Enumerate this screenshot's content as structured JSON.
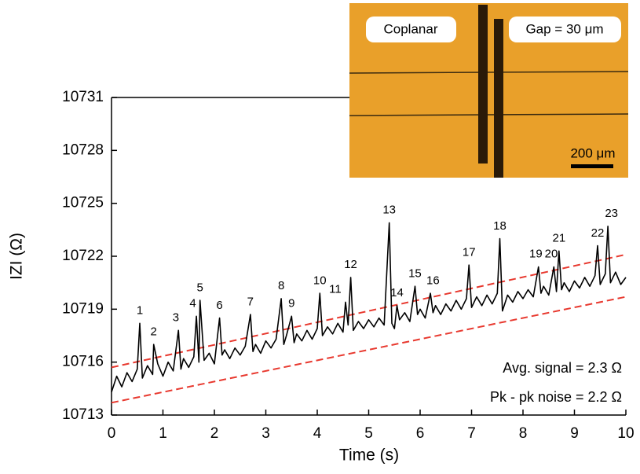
{
  "chart_data": {
    "type": "line",
    "xlabel": "Time (s)",
    "ylabel": "IZI (Ω)",
    "xlim": [
      0,
      10
    ],
    "ylim": [
      10713,
      10731
    ],
    "xticks": [
      0,
      1,
      2,
      3,
      4,
      5,
      6,
      7,
      8,
      9,
      10
    ],
    "yticks": [
      10713,
      10716,
      10719,
      10722,
      10725,
      10728,
      10731
    ],
    "series": [
      {
        "color": "#000000",
        "x": [
          0.0,
          0.1,
          0.2,
          0.3,
          0.4,
          0.5,
          0.55,
          0.6,
          0.7,
          0.8,
          0.82,
          0.9,
          1.0,
          1.1,
          1.2,
          1.3,
          1.35,
          1.4,
          1.5,
          1.6,
          1.65,
          1.7,
          1.72,
          1.8,
          1.9,
          2.0,
          2.1,
          2.15,
          2.2,
          2.3,
          2.4,
          2.5,
          2.6,
          2.7,
          2.75,
          2.8,
          2.9,
          3.0,
          3.1,
          3.2,
          3.3,
          3.35,
          3.4,
          3.5,
          3.55,
          3.6,
          3.7,
          3.8,
          3.9,
          4.0,
          4.05,
          4.1,
          4.2,
          4.3,
          4.4,
          4.5,
          4.55,
          4.6,
          4.65,
          4.7,
          4.8,
          4.9,
          5.0,
          5.1,
          5.2,
          5.3,
          5.4,
          5.45,
          5.5,
          5.55,
          5.6,
          5.7,
          5.8,
          5.9,
          5.95,
          6.0,
          6.1,
          6.2,
          6.25,
          6.3,
          6.4,
          6.5,
          6.6,
          6.7,
          6.8,
          6.9,
          6.95,
          7.0,
          7.1,
          7.2,
          7.3,
          7.4,
          7.5,
          7.55,
          7.6,
          7.7,
          7.8,
          7.9,
          8.0,
          8.1,
          8.2,
          8.3,
          8.35,
          8.4,
          8.5,
          8.6,
          8.65,
          8.7,
          8.75,
          8.8,
          8.9,
          9.0,
          9.1,
          9.2,
          9.3,
          9.4,
          9.45,
          9.5,
          9.6,
          9.65,
          9.7,
          9.8,
          9.9,
          10.0
        ],
        "values": [
          10714.3,
          10715.2,
          10714.6,
          10715.4,
          10714.9,
          10715.6,
          10718.2,
          10715.1,
          10715.8,
          10715.3,
          10717.0,
          10715.9,
          10715.2,
          10716.0,
          10715.5,
          10717.8,
          10715.6,
          10716.2,
          10715.7,
          10716.3,
          10718.6,
          10716.0,
          10719.5,
          10716.1,
          10716.5,
          10715.9,
          10718.5,
          10716.4,
          10716.7,
          10716.2,
          10716.8,
          10716.4,
          10716.9,
          10718.7,
          10716.6,
          10717.0,
          10716.5,
          10717.2,
          10716.8,
          10717.3,
          10719.6,
          10717.0,
          10717.5,
          10718.6,
          10717.1,
          10717.6,
          10717.2,
          10717.8,
          10717.3,
          10717.9,
          10719.9,
          10717.5,
          10718.0,
          10717.6,
          10718.2,
          10717.7,
          10719.4,
          10718.1,
          10720.8,
          10717.8,
          10718.3,
          10717.9,
          10718.4,
          10718.0,
          10718.5,
          10718.1,
          10723.9,
          10718.2,
          10717.9,
          10719.2,
          10718.4,
          10718.8,
          10718.3,
          10720.3,
          10718.7,
          10719.0,
          10718.5,
          10719.9,
          10718.8,
          10719.2,
          10718.7,
          10719.3,
          10718.9,
          10719.5,
          10719.0,
          10719.6,
          10721.5,
          10719.1,
          10719.7,
          10719.2,
          10719.8,
          10719.3,
          10719.9,
          10723.0,
          10718.9,
          10719.8,
          10719.4,
          10720.0,
          10719.6,
          10720.1,
          10719.7,
          10721.4,
          10719.9,
          10720.3,
          10719.8,
          10721.4,
          10720.0,
          10722.3,
          10720.1,
          10720.5,
          10720.0,
          10720.6,
          10720.2,
          10720.8,
          10720.3,
          10720.9,
          10722.6,
          10720.4,
          10721.0,
          10723.7,
          10720.5,
          10721.1,
          10720.4,
          10720.8
        ]
      }
    ],
    "fit_lines": [
      {
        "color": "#e8392f",
        "x": [
          0,
          10
        ],
        "values": [
          10715.7,
          10722.1
        ]
      },
      {
        "color": "#e8392f",
        "x": [
          0,
          10
        ],
        "values": [
          10713.7,
          10719.7
        ]
      }
    ],
    "peak_labels": [
      {
        "text": "1",
        "x": 0.55,
        "y": 10718.9
      },
      {
        "text": "2",
        "x": 0.82,
        "y": 10717.7
      },
      {
        "text": "3",
        "x": 1.25,
        "y": 10718.5
      },
      {
        "text": "4",
        "x": 1.58,
        "y": 10719.3
      },
      {
        "text": "5",
        "x": 1.72,
        "y": 10720.2
      },
      {
        "text": "6",
        "x": 2.1,
        "y": 10719.2
      },
      {
        "text": "7",
        "x": 2.7,
        "y": 10719.4
      },
      {
        "text": "8",
        "x": 3.3,
        "y": 10720.3
      },
      {
        "text": "9",
        "x": 3.5,
        "y": 10719.3
      },
      {
        "text": "10",
        "x": 4.05,
        "y": 10720.6
      },
      {
        "text": "11",
        "x": 4.35,
        "y": 10720.1
      },
      {
        "text": "12",
        "x": 4.65,
        "y": 10721.5
      },
      {
        "text": "13",
        "x": 5.4,
        "y": 10724.6
      },
      {
        "text": "14",
        "x": 5.55,
        "y": 10719.9
      },
      {
        "text": "15",
        "x": 5.9,
        "y": 10721.0
      },
      {
        "text": "16",
        "x": 6.25,
        "y": 10720.6
      },
      {
        "text": "17",
        "x": 6.95,
        "y": 10722.2
      },
      {
        "text": "18",
        "x": 7.55,
        "y": 10723.7
      },
      {
        "text": "19",
        "x": 8.25,
        "y": 10722.1
      },
      {
        "text": "20",
        "x": 8.55,
        "y": 10722.1
      },
      {
        "text": "21",
        "x": 8.7,
        "y": 10723.0
      },
      {
        "text": "22",
        "x": 9.45,
        "y": 10723.3
      },
      {
        "text": "23",
        "x": 9.72,
        "y": 10724.4
      }
    ],
    "notes": [
      "Avg. signal = 2.3 Ω",
      "Pk - pk noise = 2.2 Ω"
    ],
    "inset": {
      "left_label": "Coplanar",
      "right_label": "Gap = 30 μm",
      "scale_label": "200 μm"
    }
  }
}
